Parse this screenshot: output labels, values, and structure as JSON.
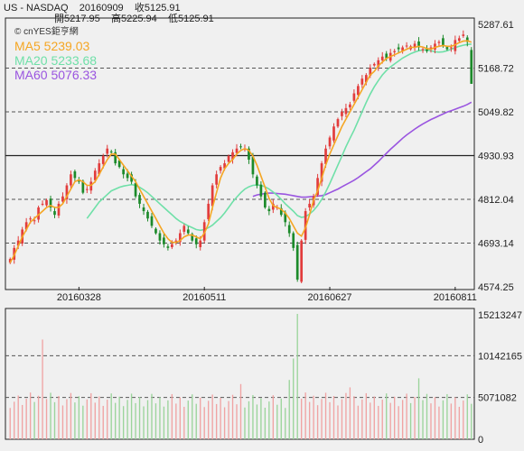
{
  "header": {
    "line1": "US - NASDAQ    20160909    收5125.91",
    "line2": "開5217.95    高5225.94    低5125.91"
  },
  "watermark": "© cnYES鉅亨網",
  "colors": {
    "up": "#e23c3c",
    "down": "#1c8a2a",
    "ma5": "#f5a623",
    "ma20": "#6fe0a8",
    "ma60": "#9a55e0",
    "grid": "#555555",
    "volume_up": "#f0a3a3",
    "volume_down": "#9bd49b"
  },
  "chart_data": [
    {
      "type": "candlestick",
      "ylim": [
        4574.25,
        5287.61
      ],
      "yticks": [
        "5287.61",
        "5168.72",
        "5049.82",
        "4930.93",
        "4812.04",
        "4693.14",
        "4574.25"
      ],
      "xticks": [
        "20160328",
        "20160511",
        "20160627",
        "20160811"
      ],
      "last": {
        "date": "20160909",
        "open": 5217.95,
        "high": 5225.94,
        "low": 5125.91,
        "close": 5125.91
      },
      "legend": [
        {
          "name": "MA5",
          "value": "5239.03",
          "color": "#f5a623"
        },
        {
          "name": "MA20",
          "value": "5233.68",
          "color": "#6fe0a8"
        },
        {
          "name": "MA60",
          "value": "5076.33",
          "color": "#9a55e0"
        }
      ],
      "closes": [
        4650,
        4680,
        4700,
        4730,
        4750,
        4760,
        4755,
        4790,
        4800,
        4810,
        4790,
        4770,
        4800,
        4820,
        4850,
        4880,
        4870,
        4860,
        4830,
        4840,
        4860,
        4890,
        4910,
        4930,
        4950,
        4940,
        4910,
        4900,
        4880,
        4870,
        4860,
        4820,
        4800,
        4780,
        4760,
        4740,
        4720,
        4700,
        4690,
        4680,
        4690,
        4700,
        4720,
        4740,
        4720,
        4700,
        4690,
        4700,
        4750,
        4800,
        4850,
        4880,
        4900,
        4910,
        4930,
        4940,
        4950,
        4955,
        4950,
        4920,
        4880,
        4850,
        4820,
        4790,
        4780,
        4800,
        4790,
        4770,
        4750,
        4720,
        4680,
        4594,
        4700,
        4780,
        4800,
        4820,
        4870,
        4910,
        4950,
        4980,
        5010,
        5030,
        5050,
        5060,
        5070,
        5100,
        5120,
        5140,
        5150,
        5170,
        5180,
        5190,
        5200,
        5195,
        5210,
        5215,
        5220,
        5225,
        5230,
        5228,
        5235,
        5225,
        5220,
        5215,
        5225,
        5235,
        5240,
        5230,
        5220,
        5225,
        5245,
        5250,
        5260,
        5240,
        5126
      ],
      "ma5": [
        4640,
        4660,
        4685,
        4710,
        4730,
        4750,
        4760,
        4770,
        4780,
        4790,
        4795,
        4790,
        4790,
        4800,
        4820,
        4840,
        4860,
        4865,
        4860,
        4850,
        4850,
        4860,
        4880,
        4900,
        4920,
        4935,
        4935,
        4920,
        4905,
        4890,
        4875,
        4860,
        4840,
        4820,
        4800,
        4780,
        4760,
        4740,
        4720,
        4705,
        4695,
        4695,
        4700,
        4710,
        4715,
        4715,
        4710,
        4705,
        4720,
        4745,
        4790,
        4830,
        4870,
        4895,
        4910,
        4920,
        4935,
        4945,
        4950,
        4945,
        4930,
        4905,
        4875,
        4845,
        4815,
        4795,
        4790,
        4785,
        4775,
        4760,
        4740,
        4720,
        4712,
        4735,
        4770,
        4810,
        4835,
        4870,
        4905,
        4935,
        4960,
        4985,
        5010,
        5030,
        5050,
        5070,
        5090,
        5110,
        5130,
        5150,
        5160,
        5175,
        5185,
        5195,
        5200,
        5205,
        5210,
        5215,
        5220,
        5225,
        5225,
        5228,
        5226,
        5222,
        5220,
        5225,
        5228,
        5230,
        5228,
        5228,
        5232,
        5238,
        5242,
        5243,
        5239
      ],
      "ma20": [
        null,
        null,
        null,
        null,
        null,
        null,
        null,
        null,
        null,
        null,
        null,
        null,
        null,
        null,
        null,
        null,
        null,
        null,
        null,
        4760,
        4775,
        4790,
        4805,
        4815,
        4825,
        4835,
        4840,
        4845,
        4848,
        4850,
        4852,
        4850,
        4845,
        4838,
        4830,
        4820,
        4810,
        4800,
        4790,
        4780,
        4770,
        4760,
        4752,
        4746,
        4740,
        4735,
        4730,
        4728,
        4730,
        4735,
        4742,
        4752,
        4762,
        4775,
        4790,
        4805,
        4818,
        4830,
        4840,
        4846,
        4850,
        4851,
        4850,
        4846,
        4840,
        4832,
        4823,
        4812,
        4800,
        4790,
        4780,
        4768,
        4763,
        4765,
        4772,
        4782,
        4795,
        4812,
        4832,
        4855,
        4880,
        4905,
        4930,
        4955,
        4978,
        5000,
        5025,
        5050,
        5075,
        5098,
        5118,
        5135,
        5150,
        5162,
        5172,
        5180,
        5188,
        5196,
        5202,
        5208,
        5212,
        5216,
        5218,
        5218,
        5216,
        5213,
        5212,
        5213,
        5216,
        5220,
        5224,
        5228,
        5231,
        5233,
        5234
      ],
      "ma60": [
        null,
        null,
        null,
        null,
        null,
        null,
        null,
        null,
        null,
        null,
        null,
        null,
        null,
        null,
        null,
        null,
        null,
        null,
        null,
        null,
        null,
        null,
        null,
        null,
        null,
        null,
        null,
        null,
        null,
        null,
        null,
        null,
        null,
        null,
        null,
        null,
        null,
        null,
        null,
        null,
        null,
        null,
        null,
        null,
        null,
        null,
        null,
        null,
        null,
        null,
        null,
        null,
        null,
        null,
        null,
        null,
        null,
        null,
        null,
        null,
        4820,
        4824,
        4826,
        4828,
        4829,
        4829,
        4828,
        4827,
        4826,
        4824,
        4822,
        4820,
        4818,
        4818,
        4819,
        4820,
        4821,
        4822,
        4825,
        4830,
        4835,
        4840,
        4846,
        4852,
        4858,
        4864,
        4871,
        4879,
        4887,
        4895,
        4905,
        4915,
        4926,
        4937,
        4948,
        4958,
        4968,
        4978,
        4987,
        4995,
        5003,
        5010,
        5017,
        5023,
        5029,
        5034,
        5039,
        5044,
        5049,
        5053,
        5057,
        5061,
        5065,
        5070,
        5076
      ]
    },
    {
      "type": "bar",
      "ylim": [
        0,
        15213247
      ],
      "yticks": [
        "15213247",
        "10142165",
        "5071082",
        "0"
      ]
    }
  ]
}
